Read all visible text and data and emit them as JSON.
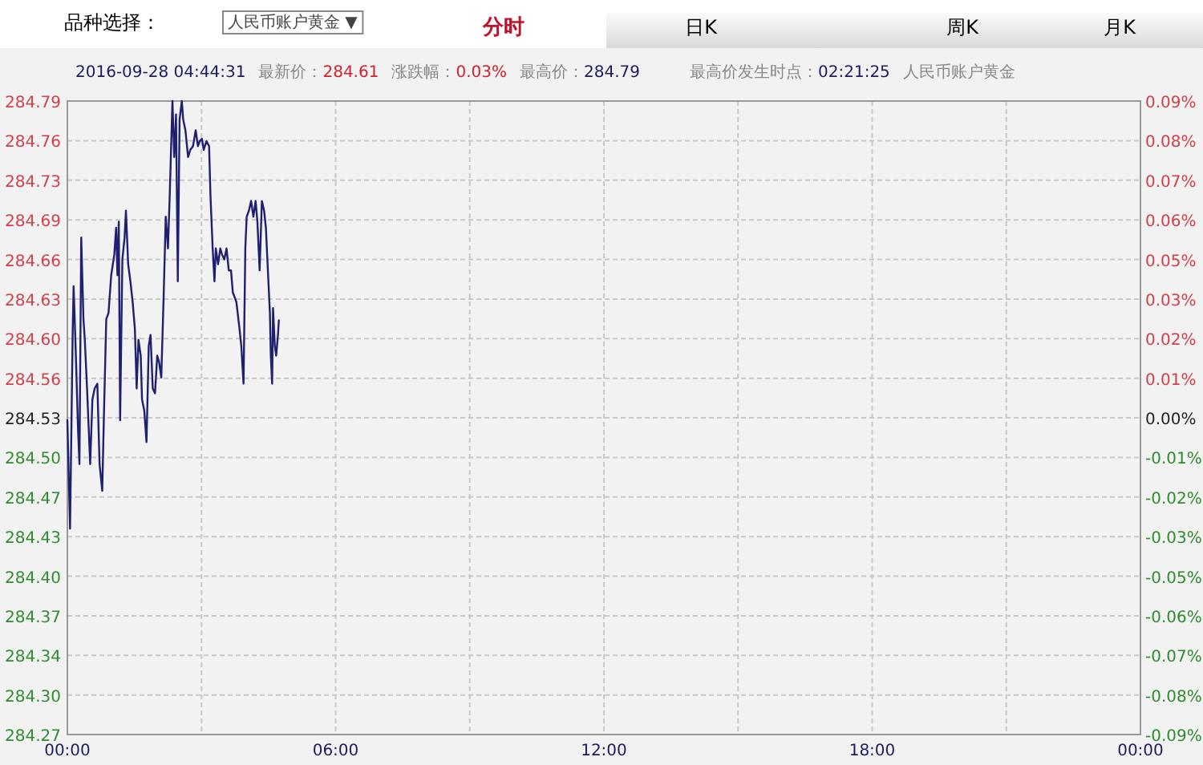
{
  "chart_data": {
    "type": "line",
    "x": [
      0,
      0.06,
      0.12,
      0.14,
      0.19,
      0.24,
      0.27,
      0.31,
      0.36,
      0.39,
      0.44,
      0.48,
      0.51,
      0.56,
      0.61,
      0.67,
      0.72,
      0.78,
      0.82,
      0.87,
      0.92,
      0.98,
      1.05,
      1.09,
      1.12,
      1.15,
      1.18,
      1.23,
      1.28,
      1.31,
      1.36,
      1.41,
      1.46,
      1.51,
      1.55,
      1.59,
      1.64,
      1.67,
      1.72,
      1.77,
      1.82,
      1.86,
      1.91,
      1.96,
      2.01,
      2.05,
      2.1,
      2.15,
      2.2,
      2.25,
      2.29,
      2.35,
      2.39,
      2.43,
      2.47,
      2.51,
      2.56,
      2.59,
      2.64,
      2.7,
      2.75,
      2.81,
      2.87,
      2.92,
      2.96,
      3.01,
      3.05,
      3.11,
      3.17,
      3.2,
      3.25,
      3.29,
      3.32,
      3.37,
      3.42,
      3.46,
      3.51,
      3.56,
      3.61,
      3.66,
      3.7,
      3.78,
      3.85,
      3.89,
      3.94,
      3.98,
      4.01,
      4.06,
      4.11,
      4.16,
      4.21,
      4.25,
      4.3,
      4.35,
      4.4,
      4.44,
      4.49,
      4.53,
      4.55,
      4.58,
      4.6,
      4.64,
      4.67,
      4.71,
      4.73
    ],
    "series": [
      {
        "color": "#1f2070",
        "values": [
          284.528,
          284.439,
          284.603,
          284.638,
          284.581,
          284.519,
          284.492,
          284.678,
          284.611,
          284.594,
          284.554,
          284.519,
          284.492,
          284.545,
          284.554,
          284.558,
          284.492,
          284.47,
          284.536,
          284.611,
          284.616,
          284.647,
          284.664,
          284.686,
          284.647,
          284.691,
          284.528,
          284.66,
          284.678,
          284.7,
          284.656,
          284.642,
          284.625,
          284.603,
          284.554,
          284.594,
          284.581,
          284.545,
          284.536,
          284.51,
          284.589,
          284.598,
          284.554,
          284.55,
          284.581,
          284.576,
          284.563,
          284.625,
          284.695,
          284.669,
          284.713,
          284.79,
          284.744,
          284.779,
          284.642,
          284.775,
          284.79,
          284.775,
          284.766,
          284.744,
          284.75,
          284.753,
          284.766,
          284.753,
          284.757,
          284.759,
          284.75,
          284.757,
          284.753,
          284.713,
          284.669,
          284.642,
          284.669,
          284.656,
          284.669,
          284.664,
          284.66,
          284.669,
          284.651,
          284.651,
          284.633,
          284.625,
          284.603,
          284.589,
          284.558,
          284.669,
          284.695,
          284.7,
          284.708,
          284.695,
          284.708,
          284.691,
          284.651,
          284.708,
          284.7,
          284.686,
          284.647,
          284.616,
          284.581,
          284.558,
          284.62,
          284.589,
          284.581,
          284.598,
          284.61
        ]
      }
    ],
    "xlim": [
      0,
      24
    ],
    "xticks": [
      {
        "value": 0,
        "label": "00:00"
      },
      {
        "value": 3,
        "label": null
      },
      {
        "value": 6,
        "label": "06:00"
      },
      {
        "value": 9,
        "label": null
      },
      {
        "value": 12,
        "label": "12:00"
      },
      {
        "value": 15,
        "label": null
      },
      {
        "value": 18,
        "label": "18:00"
      },
      {
        "value": 21,
        "label": null
      },
      {
        "value": 24,
        "label": "00:00"
      }
    ],
    "ylim": [
      284.27,
      284.79
    ],
    "yticks": [
      {
        "value": 284.79,
        "label": "284.79"
      },
      {
        "value": 284.7575,
        "label": "284.76"
      },
      {
        "value": 284.725,
        "label": "284.73"
      },
      {
        "value": 284.6925,
        "label": "284.69"
      },
      {
        "value": 284.66,
        "label": "284.66"
      },
      {
        "value": 284.6275,
        "label": "284.63"
      },
      {
        "value": 284.595,
        "label": "284.60"
      },
      {
        "value": 284.5625,
        "label": "284.56"
      },
      {
        "value": 284.53,
        "label": "284.53"
      },
      {
        "value": 284.4975,
        "label": "284.50"
      },
      {
        "value": 284.465,
        "label": "284.47"
      },
      {
        "value": 284.4325,
        "label": "284.43"
      },
      {
        "value": 284.4,
        "label": "284.40"
      },
      {
        "value": 284.3675,
        "label": "284.37"
      },
      {
        "value": 284.335,
        "label": "284.34"
      },
      {
        "value": 284.3025,
        "label": "284.30"
      },
      {
        "value": 284.27,
        "label": "284.27"
      }
    ],
    "y2lim": [
      -0.0914,
      0.0914
    ],
    "y2ticks": [
      {
        "value": 0.0914,
        "label": "0.09%"
      },
      {
        "value": 0.08,
        "label": "0.08%"
      },
      {
        "value": 0.0685,
        "label": "0.07%"
      },
      {
        "value": 0.0571,
        "label": "0.06%"
      },
      {
        "value": 0.0457,
        "label": "0.05%"
      },
      {
        "value": 0.0343,
        "label": "0.03%"
      },
      {
        "value": 0.0228,
        "label": "0.02%"
      },
      {
        "value": 0.0114,
        "label": "0.01%"
      },
      {
        "value": 0,
        "label": "0.00%"
      },
      {
        "value": -0.0114,
        "label": "-0.01%"
      },
      {
        "value": -0.0228,
        "label": "-0.02%"
      },
      {
        "value": -0.0343,
        "label": "-0.03%"
      },
      {
        "value": -0.0457,
        "label": "-0.05%"
      },
      {
        "value": -0.0571,
        "label": "-0.06%"
      },
      {
        "value": -0.0685,
        "label": "-0.07%"
      },
      {
        "value": -0.08,
        "label": "-0.08%"
      },
      {
        "value": -0.0914,
        "label": "-0.09%"
      }
    ],
    "grid": true,
    "annotations": [
      "品种选择：",
      "人民币账户黄金 ▼",
      "分时",
      "日K",
      "周K",
      "月K",
      "2016-09-28 04:44:31",
      "最新价：284.61",
      "涨跌幅：0.03%",
      "最高价：284.79",
      "最高价发生时点：02:21:25",
      "人民币账户黄金"
    ]
  }
}
